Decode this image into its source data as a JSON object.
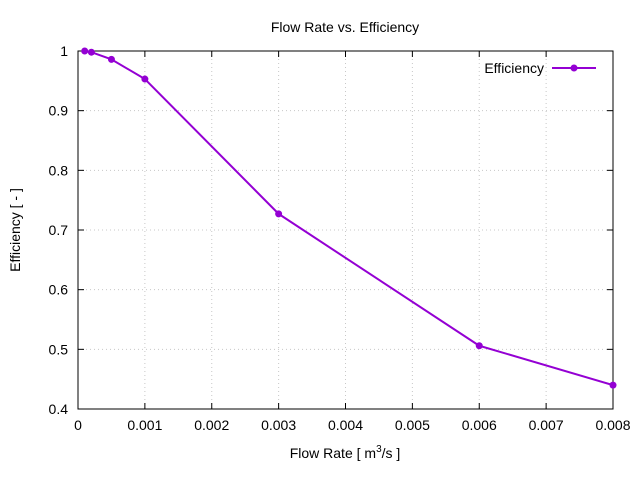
{
  "chart_data": {
    "type": "line",
    "title": "Flow Rate  vs. Efficiency",
    "xlabel_main": "Flow Rate [ m",
    "xlabel_sup": "3",
    "xlabel_tail": "/s ]",
    "ylabel": "Efficiency [ - ]",
    "xlim": [
      0,
      0.008
    ],
    "ylim": [
      0.4,
      1.0
    ],
    "xticks": [
      0,
      0.001,
      0.002,
      0.003,
      0.004,
      0.005,
      0.006,
      0.007,
      0.008
    ],
    "xtick_labels": [
      "0",
      "0.001",
      "0.002",
      "0.003",
      "0.004",
      "0.005",
      "0.006",
      "0.007",
      "0.008"
    ],
    "yticks": [
      0.4,
      0.5,
      0.6,
      0.7,
      0.8,
      0.9,
      1.0
    ],
    "ytick_labels": [
      "0.4",
      "0.5",
      "0.6",
      "0.7",
      "0.8",
      "0.9",
      "1"
    ],
    "grid": true,
    "legend_position": "top-right",
    "series": [
      {
        "name": "Efficiency",
        "color": "#9400d3",
        "x": [
          0.0001,
          0.0002,
          0.0005,
          0.001,
          0.003,
          0.006,
          0.008
        ],
        "y": [
          1.0,
          0.998,
          0.986,
          0.953,
          0.727,
          0.506,
          0.44
        ]
      }
    ]
  }
}
